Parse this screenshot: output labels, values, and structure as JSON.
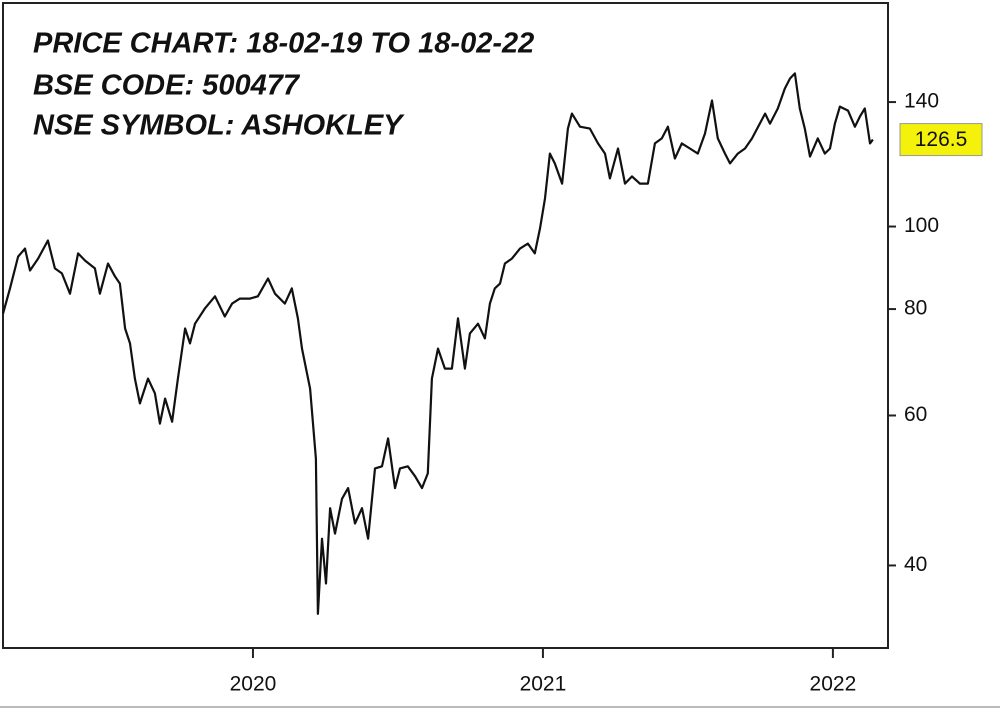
{
  "chart_data": {
    "type": "line",
    "title": [
      "PRICE CHART: 18-02-19 TO 18-02-22",
      "BSE CODE:  500477",
      "NSE SYMBOL: ASHOKLEY"
    ],
    "x": [
      2019.138,
      2019.162,
      2019.19,
      2019.214,
      2019.231,
      2019.259,
      2019.293,
      2019.317,
      2019.341,
      2019.369,
      2019.397,
      2019.421,
      2019.455,
      2019.472,
      2019.5,
      2019.524,
      2019.541,
      2019.559,
      2019.576,
      2019.593,
      2019.61,
      2019.638,
      2019.662,
      2019.679,
      2019.697,
      2019.721,
      2019.741,
      2019.766,
      2019.783,
      2019.8,
      2019.834,
      2019.869,
      2019.903,
      2019.928,
      2019.955,
      2019.99,
      2020.017,
      2020.052,
      2020.076,
      2020.11,
      2020.134,
      2020.155,
      2020.169,
      2020.197,
      2020.217,
      2020.224,
      2020.238,
      2020.252,
      2020.266,
      2020.283,
      2020.307,
      2020.328,
      2020.352,
      2020.376,
      2020.397,
      2020.421,
      2020.445,
      2020.466,
      2020.49,
      2020.507,
      2020.534,
      2020.559,
      2020.583,
      2020.603,
      2020.617,
      2020.638,
      2020.662,
      2020.686,
      2020.707,
      2020.731,
      2020.748,
      2020.776,
      2020.8,
      2020.817,
      2020.834,
      2020.852,
      2020.869,
      2020.893,
      2020.921,
      2020.948,
      2020.972,
      2020.99,
      2021.007,
      2021.024,
      2021.041,
      2021.066,
      2021.086,
      2021.1,
      2021.128,
      2021.162,
      2021.19,
      2021.214,
      2021.231,
      2021.259,
      2021.283,
      2021.307,
      2021.334,
      2021.362,
      2021.386,
      2021.41,
      2021.431,
      2021.455,
      2021.479,
      2021.507,
      2021.534,
      2021.559,
      2021.583,
      2021.603,
      2021.628,
      2021.645,
      2021.672,
      2021.697,
      2021.721,
      2021.748,
      2021.766,
      2021.783,
      2021.81,
      2021.834,
      2021.852,
      2021.869,
      2021.886,
      2021.903,
      2021.921,
      2021.948,
      2021.972,
      2021.99,
      2022.007,
      2022.024,
      2022.052,
      2022.076,
      2022.093,
      2022.11,
      2022.128,
      2022.138
    ],
    "values": [
      79.0,
      84.6,
      92.2,
      94.2,
      88.8,
      91.7,
      96.3,
      89.3,
      88.1,
      83.4,
      93.0,
      91.2,
      89.3,
      83.4,
      90.5,
      87.4,
      85.7,
      75.9,
      72.9,
      66.3,
      62.0,
      66.3,
      63.7,
      58.7,
      62.8,
      59.0,
      66.3,
      75.9,
      72.9,
      76.9,
      80.1,
      82.8,
      78.4,
      81.2,
      82.3,
      82.3,
      82.8,
      86.9,
      83.4,
      81.2,
      84.6,
      78.0,
      71.9,
      64.5,
      53.4,
      35.1,
      43.0,
      38.1,
      46.7,
      43.6,
      47.9,
      49.3,
      44.8,
      46.7,
      43.0,
      52.0,
      52.3,
      56.4,
      49.3,
      52.0,
      52.3,
      50.9,
      49.3,
      51.3,
      66.3,
      71.9,
      68.1,
      68.1,
      78.0,
      68.1,
      74.9,
      76.9,
      73.9,
      81.2,
      84.6,
      85.7,
      90.5,
      91.7,
      94.2,
      95.5,
      93.0,
      99.5,
      107.9,
      121.8,
      118.6,
      112.3,
      130.3,
      135.7,
      131.0,
      130.3,
      125.2,
      121.8,
      113.9,
      123.5,
      112.3,
      114.5,
      112.3,
      112.3,
      125.2,
      126.9,
      131.0,
      120.2,
      125.2,
      123.5,
      121.8,
      128.6,
      140.6,
      126.9,
      121.8,
      118.6,
      121.8,
      123.5,
      126.9,
      132.1,
      135.7,
      132.1,
      137.6,
      145.2,
      149.2,
      151.3,
      137.6,
      130.3,
      120.8,
      126.9,
      121.8,
      123.5,
      132.1,
      138.3,
      136.8,
      131.0,
      134.6,
      137.6,
      125.2,
      126.5
    ],
    "color": "#111111",
    "last_price": 126.5,
    "xlim": [
      2019.138,
      2022.19
    ],
    "xticks": [
      2020,
      2021,
      2022
    ],
    "ylim": [
      32,
      183
    ],
    "yticks": [
      40,
      60,
      80,
      100,
      140
    ],
    "log_scale": true
  }
}
